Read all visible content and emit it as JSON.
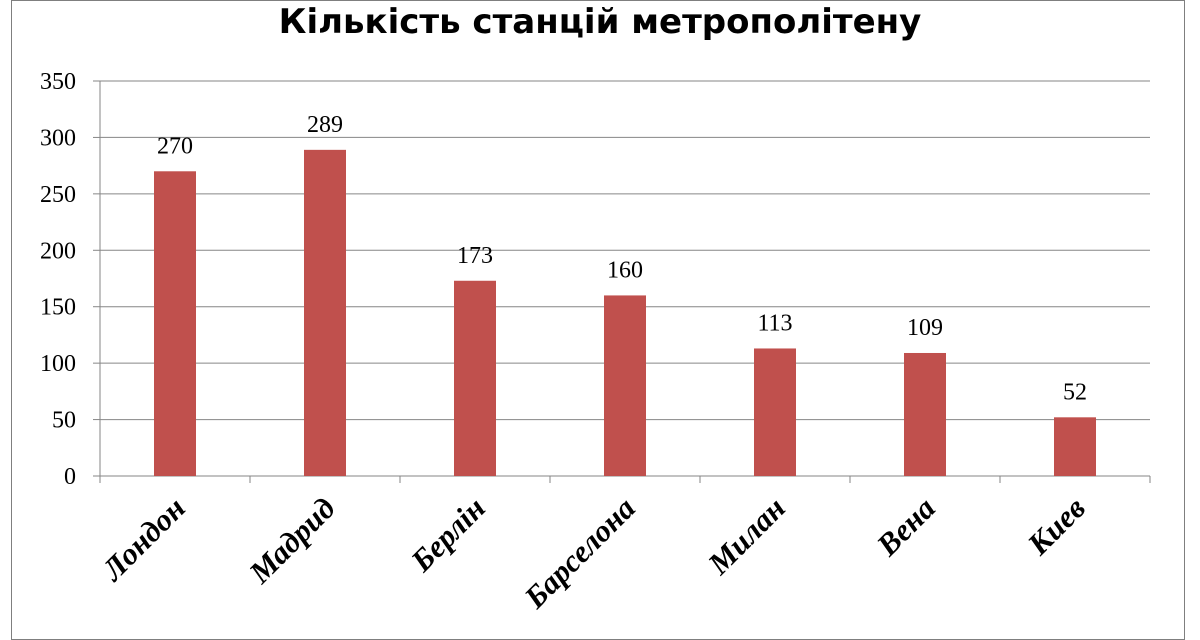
{
  "chart_data": {
    "type": "bar",
    "title": "Кількість станцій метрополітену",
    "categories": [
      "Лондон",
      "Мадрид",
      "Берлін",
      "Барселона",
      "Милан",
      "Вена",
      "Киев"
    ],
    "series": [
      {
        "values": [
          270,
          289,
          173,
          160,
          113,
          109,
          52
        ],
        "color": "#c0504d"
      }
    ],
    "data_labels": [
      "270",
      "289",
      "173",
      "160",
      "113",
      "109",
      "52"
    ],
    "ylim": [
      0,
      350
    ],
    "yticks": [
      0,
      50,
      100,
      150,
      200,
      250,
      300,
      350
    ],
    "grid": true,
    "legend": "none",
    "xlabel": "",
    "ylabel": ""
  }
}
